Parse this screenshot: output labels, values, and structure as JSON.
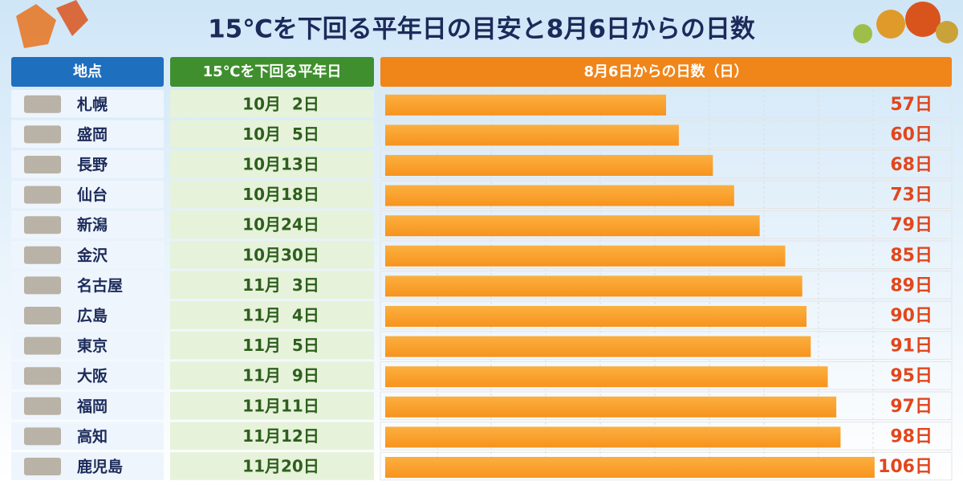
{
  "chart_data": {
    "type": "bar",
    "orientation": "horizontal",
    "title": "15℃を下回る平年日の目安と8月6日からの日数",
    "headers": [
      "地点",
      "15℃を下回る平年日",
      "8月6日からの日数（日）"
    ],
    "categories": [
      "札幌",
      "盛岡",
      "長野",
      "仙台",
      "新潟",
      "金沢",
      "名古屋",
      "広島",
      "東京",
      "大阪",
      "福岡",
      "高知",
      "鹿児島"
    ],
    "dates": [
      "10月  2日",
      "10月  5日",
      "10月13日",
      "10月18日",
      "10月24日",
      "10月30日",
      "11月  3日",
      "11月  4日",
      "11月  5日",
      "11月  9日",
      "11月11日",
      "11月12日",
      "11月20日"
    ],
    "values": [
      57,
      60,
      68,
      73,
      79,
      85,
      89,
      90,
      91,
      95,
      97,
      98,
      106
    ],
    "value_labels": [
      "57日",
      "60日",
      "68日",
      "73日",
      "79日",
      "85日",
      "89日",
      "90日",
      "91日",
      "95日",
      "97日",
      "98日",
      "106日"
    ],
    "color": "#f7931e",
    "xlim": [
      -9,
      123
    ]
  }
}
